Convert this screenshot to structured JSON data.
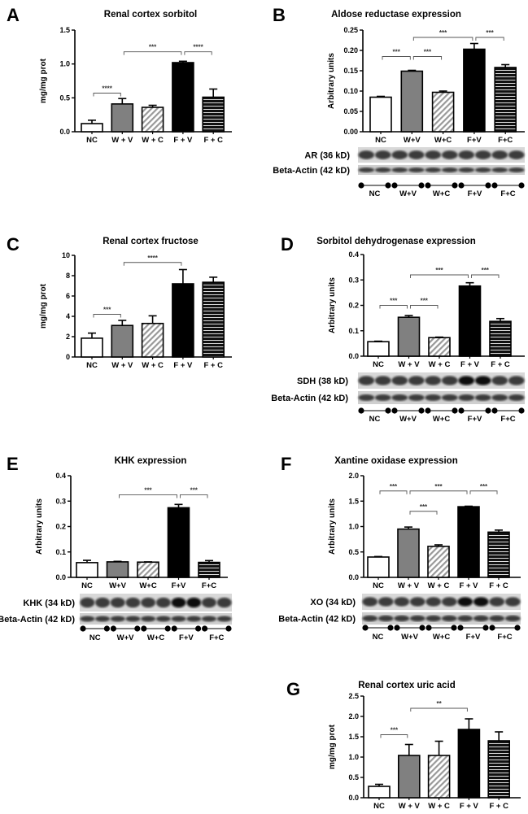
{
  "colors": {
    "NC": "#ffffff",
    "W+V": "#808080",
    "W+C": "hatch",
    "F+V": "#000000",
    "F+C": "stripes"
  },
  "chart_data": [
    {
      "id": "A",
      "type": "bar",
      "letter": "A",
      "title": "Renal cortex sorbitol",
      "ylabel": "mg/mg prot",
      "ylim": [
        0,
        1.5
      ],
      "yticks": [
        0,
        0.5,
        1.0,
        1.5
      ],
      "ytick_labels": [
        "0.0",
        "0.5",
        "1.0",
        "1.5"
      ],
      "categories": [
        "NC",
        "W + V",
        "W + C",
        "F + V",
        "F + C"
      ],
      "values": [
        0.12,
        0.41,
        0.36,
        1.02,
        0.51
      ],
      "errors": [
        0.05,
        0.08,
        0.03,
        0.02,
        0.12
      ],
      "significance": [
        {
          "from": 0,
          "to": 1,
          "level": 0.57,
          "label": "****"
        },
        {
          "from": 1,
          "to": 3,
          "level": 1.18,
          "label": "***"
        },
        {
          "from": 3,
          "to": 4,
          "level": 1.18,
          "label": "****"
        }
      ]
    },
    {
      "id": "B",
      "type": "bar",
      "letter": "B",
      "title": "Aldose reductase expression",
      "ylabel": "Arbitrary units",
      "ylim": [
        0,
        0.25
      ],
      "yticks": [
        0,
        0.05,
        0.1,
        0.15,
        0.2,
        0.25
      ],
      "ytick_labels": [
        "0.00",
        "0.05",
        "0.10",
        "0.15",
        "0.20",
        "0.25"
      ],
      "categories": [
        "NC",
        "W+V",
        "W+C",
        "F+V",
        "F+C"
      ],
      "values": [
        0.085,
        0.149,
        0.097,
        0.203,
        0.158
      ],
      "errors": [
        0.002,
        0.002,
        0.003,
        0.014,
        0.007
      ],
      "significance": [
        {
          "from": 0,
          "to": 1,
          "level": 0.185,
          "label": "***"
        },
        {
          "from": 1,
          "to": 2,
          "level": 0.185,
          "label": "***"
        },
        {
          "from": 1,
          "to": 3,
          "level": 0.232,
          "label": "***"
        },
        {
          "from": 3,
          "to": 4,
          "level": 0.232,
          "label": "***"
        }
      ],
      "blots": [
        "AR (36 kD)",
        "Beta-Actin (42 kD)"
      ],
      "blot_groups": [
        "NC",
        "W+V",
        "W+C",
        "F+V",
        "F+C"
      ]
    },
    {
      "id": "C",
      "type": "bar",
      "letter": "C",
      "title": "Renal cortex fructose",
      "ylabel": "mg/mg prot",
      "ylim": [
        0,
        10
      ],
      "yticks": [
        0,
        2,
        4,
        6,
        8,
        10
      ],
      "ytick_labels": [
        "0",
        "2",
        "4",
        "6",
        "8",
        "10"
      ],
      "categories": [
        "NC",
        "W + V",
        "W + C",
        "F + V",
        "F + C"
      ],
      "values": [
        1.85,
        3.1,
        3.3,
        7.2,
        7.35
      ],
      "errors": [
        0.5,
        0.5,
        0.75,
        1.4,
        0.5
      ],
      "significance": [
        {
          "from": 0,
          "to": 1,
          "level": 4.2,
          "label": "***"
        },
        {
          "from": 1,
          "to": 3,
          "level": 9.3,
          "label": "****"
        }
      ]
    },
    {
      "id": "D",
      "type": "bar",
      "letter": "D",
      "title": "Sorbitol dehydrogenase expression",
      "ylabel": "Arbitrary units",
      "ylim": [
        0,
        0.4
      ],
      "yticks": [
        0,
        0.1,
        0.2,
        0.3,
        0.4
      ],
      "ytick_labels": [
        "0.0",
        "0.1",
        "0.2",
        "0.3",
        "0.4"
      ],
      "categories": [
        "NC",
        "W + V",
        "W + C",
        "F + V",
        "F + C"
      ],
      "values": [
        0.057,
        0.153,
        0.073,
        0.276,
        0.137
      ],
      "errors": [
        0.002,
        0.007,
        0.002,
        0.013,
        0.011
      ],
      "significance": [
        {
          "from": 0,
          "to": 1,
          "level": 0.2,
          "label": "***"
        },
        {
          "from": 1,
          "to": 2,
          "level": 0.2,
          "label": "***"
        },
        {
          "from": 1,
          "to": 3,
          "level": 0.32,
          "label": "***"
        },
        {
          "from": 3,
          "to": 4,
          "level": 0.32,
          "label": "***"
        }
      ],
      "blots": [
        "SDH (38 kD)",
        "Beta-Actin  (42 kD)"
      ],
      "blot_groups": [
        "NC",
        "W+V",
        "W+C",
        "F+V",
        "F+C"
      ]
    },
    {
      "id": "E",
      "type": "bar",
      "letter": "E",
      "title": "KHK expression",
      "ylabel": "Arbitrary units",
      "ylim": [
        0,
        0.4
      ],
      "yticks": [
        0,
        0.1,
        0.2,
        0.3,
        0.4
      ],
      "ytick_labels": [
        "0.0",
        "0.1",
        "0.2",
        "0.3",
        "0.4"
      ],
      "categories": [
        "NC",
        "W+V",
        "W+C",
        "F+V",
        "F+C"
      ],
      "values": [
        0.058,
        0.061,
        0.06,
        0.274,
        0.059
      ],
      "errors": [
        0.009,
        0.002,
        0.001,
        0.013,
        0.007
      ],
      "significance": [
        {
          "from": 1,
          "to": 3,
          "level": 0.325,
          "label": "***"
        },
        {
          "from": 3,
          "to": 4,
          "level": 0.325,
          "label": "***"
        }
      ],
      "blots": [
        "KHK (34 kD)",
        "Beta-Actin (42 kD)"
      ],
      "blot_groups": [
        "NC",
        "W+V",
        "W+C",
        "F+V",
        "F+C"
      ]
    },
    {
      "id": "F",
      "type": "bar",
      "letter": "F",
      "title": "Xantine oxidase expression",
      "ylabel": "Arbitrary units",
      "ylim": [
        0,
        2.0
      ],
      "yticks": [
        0,
        0.5,
        1.0,
        1.5,
        2.0
      ],
      "ytick_labels": [
        "0.0",
        "0.5",
        "1.0",
        "1.5",
        "2.0"
      ],
      "categories": [
        "NC",
        "W + V",
        "W + C",
        "F + V",
        "F + C"
      ],
      "values": [
        0.4,
        0.95,
        0.61,
        1.39,
        0.89
      ],
      "errors": [
        0.01,
        0.04,
        0.03,
        0.01,
        0.04
      ],
      "significance": [
        {
          "from": 0,
          "to": 1,
          "level": 1.7,
          "label": "***"
        },
        {
          "from": 1,
          "to": 2,
          "level": 1.3,
          "label": "***"
        },
        {
          "from": 1,
          "to": 3,
          "level": 1.7,
          "label": "***"
        },
        {
          "from": 3,
          "to": 4,
          "level": 1.7,
          "label": "***"
        }
      ],
      "blots": [
        "XO (34 kD)",
        "Beta-Actin (42 kD)"
      ],
      "blot_groups": [
        "NC",
        "W+V",
        "W+C",
        "F+V",
        "F+C"
      ]
    },
    {
      "id": "G",
      "type": "bar",
      "letter": "G",
      "title": "Renal cortex uric acid",
      "ylabel": "mg/mg prot",
      "ylim": [
        0,
        2.5
      ],
      "yticks": [
        0,
        0.5,
        1.0,
        1.5,
        2.0,
        2.5
      ],
      "ytick_labels": [
        "0.0",
        "0.5",
        "1.0",
        "1.5",
        "2.0",
        "2.5"
      ],
      "categories": [
        "NC",
        "W + V",
        "W + C",
        "F + V",
        "F + C"
      ],
      "values": [
        0.28,
        1.04,
        1.04,
        1.68,
        1.4
      ],
      "errors": [
        0.05,
        0.27,
        0.35,
        0.26,
        0.22
      ],
      "significance": [
        {
          "from": 0,
          "to": 1,
          "level": 1.55,
          "label": "***"
        },
        {
          "from": 1,
          "to": 3,
          "level": 2.2,
          "label": "**"
        }
      ]
    }
  ]
}
